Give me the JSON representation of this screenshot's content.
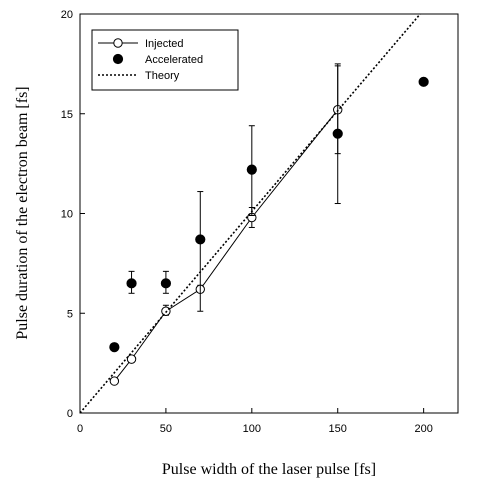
{
  "chart_data": {
    "type": "scatter",
    "xlabel": "Pulse width of the laser pulse [fs]",
    "ylabel": "Pulse duration of the electron beam [fs]",
    "xlim": [
      0,
      220
    ],
    "ylim": [
      0,
      20
    ],
    "xticks": [
      0,
      50,
      100,
      150,
      200
    ],
    "yticks": [
      0,
      5,
      10,
      15,
      20
    ],
    "grid": false,
    "legend_position": "top-left",
    "series": [
      {
        "name": "Injected",
        "marker": "open-circle",
        "line": "solid",
        "color": "#000000",
        "points": [
          {
            "x": 20,
            "y": 1.6
          },
          {
            "x": 30,
            "y": 2.7
          },
          {
            "x": 50,
            "y": 5.1,
            "err_low": 4.9,
            "err_high": 5.4
          },
          {
            "x": 70,
            "y": 6.2,
            "err_low": 6.1,
            "err_high": 6.4
          },
          {
            "x": 100,
            "y": 9.8,
            "err_low": 9.3,
            "err_high": 10.3
          },
          {
            "x": 150,
            "y": 15.2,
            "err_low": 13.0,
            "err_high": 17.4
          }
        ]
      },
      {
        "name": "Accelerated",
        "marker": "filled-circle",
        "line": "none",
        "color": "#000000",
        "points": [
          {
            "x": 20,
            "y": 3.3
          },
          {
            "x": 30,
            "y": 6.5,
            "err_low": 6.0,
            "err_high": 7.1
          },
          {
            "x": 50,
            "y": 6.5,
            "err_low": 6.0,
            "err_high": 7.1
          },
          {
            "x": 70,
            "y": 8.7,
            "err_low": 5.1,
            "err_high": 11.1
          },
          {
            "x": 100,
            "y": 12.2,
            "err_low": 9.9,
            "err_high": 14.4
          },
          {
            "x": 150,
            "y": 14.0,
            "err_low": 10.5,
            "err_high": 17.5
          },
          {
            "x": 200,
            "y": 16.6
          }
        ]
      },
      {
        "name": "Theory",
        "marker": "none",
        "line": "dotted",
        "color": "#000000",
        "points": [
          {
            "x": 0,
            "y": 0
          },
          {
            "x": 198,
            "y": 20
          }
        ]
      }
    ]
  }
}
